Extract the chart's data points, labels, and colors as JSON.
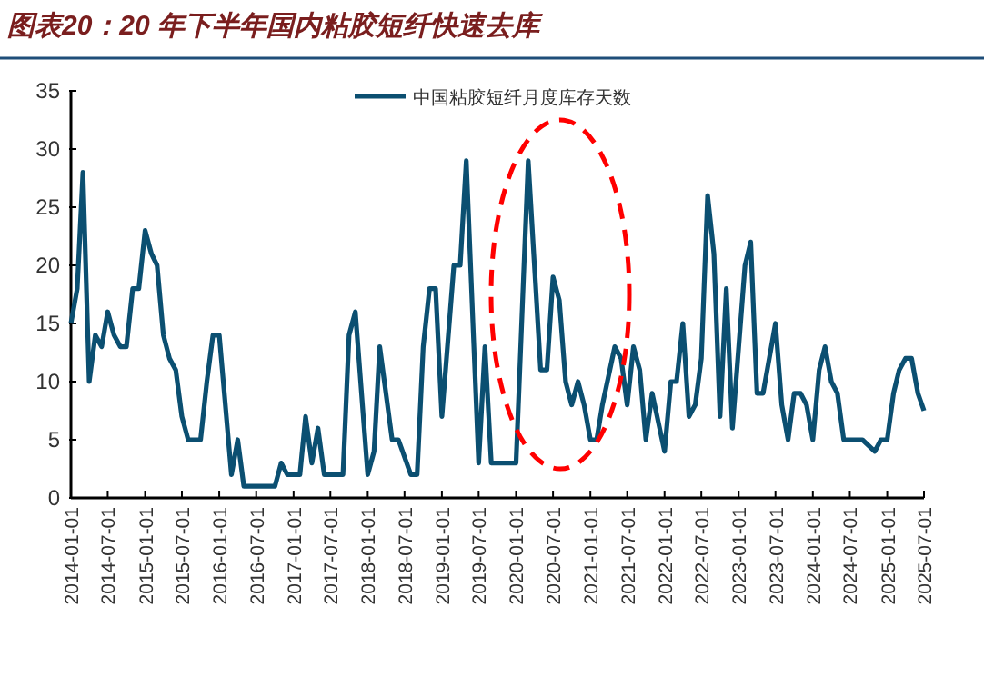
{
  "chart_data": {
    "type": "line",
    "title": "图表20：20 年下半年国内粘胶短纤快速去库",
    "x": [
      "2014-01",
      "2014-02",
      "2014-03",
      "2014-04",
      "2014-05",
      "2014-06",
      "2014-07",
      "2014-08",
      "2014-09",
      "2014-10",
      "2014-11",
      "2014-12",
      "2015-01",
      "2015-02",
      "2015-03",
      "2015-04",
      "2015-05",
      "2015-06",
      "2015-07",
      "2015-08",
      "2015-09",
      "2015-10",
      "2015-11",
      "2015-12",
      "2016-01",
      "2016-03",
      "2016-04",
      "2016-05",
      "2016-06",
      "2016-07",
      "2016-08",
      "2016-09",
      "2016-10",
      "2016-11",
      "2016-12",
      "2017-01",
      "2017-02",
      "2017-03",
      "2017-04",
      "2017-05",
      "2017-06",
      "2017-07",
      "2017-08",
      "2017-09",
      "2017-10",
      "2017-11",
      "2018-01",
      "2018-02",
      "2018-03",
      "2018-05",
      "2018-06",
      "2018-08",
      "2018-09",
      "2018-10",
      "2018-11",
      "2018-12",
      "2019-01",
      "2019-03",
      "2019-04",
      "2019-05",
      "2019-07",
      "2019-08",
      "2019-09",
      "2019-10",
      "2019-11",
      "2019-12",
      "2020-01",
      "2020-03",
      "2020-05",
      "2020-06",
      "2020-07",
      "2020-08",
      "2020-09",
      "2020-10",
      "2020-11",
      "2020-12",
      "2021-01",
      "2021-02",
      "2021-03",
      "2021-05",
      "2021-06",
      "2021-07",
      "2021-08",
      "2021-09",
      "2021-10",
      "2021-11",
      "2022-01",
      "2022-02",
      "2022-03",
      "2022-04",
      "2022-05",
      "2022-06",
      "2022-07",
      "2022-08",
      "2022-09",
      "2022-10",
      "2022-11",
      "2022-12",
      "2023-02",
      "2023-03",
      "2023-04",
      "2023-05",
      "2023-07",
      "2023-08",
      "2023-09",
      "2023-10",
      "2023-11",
      "2023-12",
      "2024-01",
      "2024-02",
      "2024-03",
      "2024-04",
      "2024-05",
      "2024-06",
      "2024-07",
      "2024-08",
      "2024-09",
      "2024-11",
      "2024-12",
      "2025-01",
      "2025-02",
      "2025-03",
      "2025-04",
      "2025-05",
      "2025-06",
      "2025-07"
    ],
    "series": [
      {
        "name": "中国粘胶短纤月度库存天数",
        "color": "#0b4f71",
        "values": [
          15,
          18,
          28,
          10,
          14,
          13,
          16,
          14,
          13,
          13,
          18,
          18,
          23,
          21,
          20,
          14,
          12,
          11,
          7,
          5,
          5,
          5,
          10,
          14,
          14,
          2,
          5,
          1,
          1,
          1,
          1,
          1,
          1,
          3,
          2,
          2,
          2,
          7,
          3,
          6,
          2,
          2,
          2,
          2,
          14,
          16,
          2,
          4,
          13,
          5,
          5,
          2,
          2,
          13,
          18,
          18,
          7,
          20,
          20,
          29,
          3,
          13,
          3,
          3,
          3,
          3,
          3,
          29,
          11,
          11,
          19,
          17,
          10,
          8,
          10,
          8,
          5,
          5,
          8,
          13,
          12,
          8,
          13,
          11,
          5,
          9,
          4,
          10,
          10,
          15,
          7,
          8,
          12,
          26,
          21,
          7,
          18,
          6,
          20,
          22,
          9,
          9,
          15,
          8,
          5,
          9,
          9,
          8,
          5,
          11,
          13,
          10,
          9,
          5,
          5,
          5,
          5,
          4,
          5,
          5,
          9,
          11,
          12,
          12,
          9,
          7.5
        ]
      }
    ],
    "xlim": [
      "2014-01-01",
      "2025-07-01"
    ],
    "xticks": [
      "2014-01-01",
      "2014-07-01",
      "2015-01-01",
      "2015-07-01",
      "2016-01-01",
      "2016-07-01",
      "2017-01-01",
      "2017-07-01",
      "2018-01-01",
      "2018-07-01",
      "2019-01-01",
      "2019-07-01",
      "2020-01-01",
      "2020-07-01",
      "2021-01-01",
      "2021-07-01",
      "2022-01-01",
      "2022-07-01",
      "2023-01-01",
      "2023-07-01",
      "2024-01-01",
      "2024-07-01",
      "2025-01-01",
      "2025-07-01"
    ],
    "ylim": [
      0,
      35
    ],
    "yticks": [
      0,
      5,
      10,
      15,
      20,
      25,
      30,
      35
    ],
    "legend": "top",
    "grid": false
  }
}
